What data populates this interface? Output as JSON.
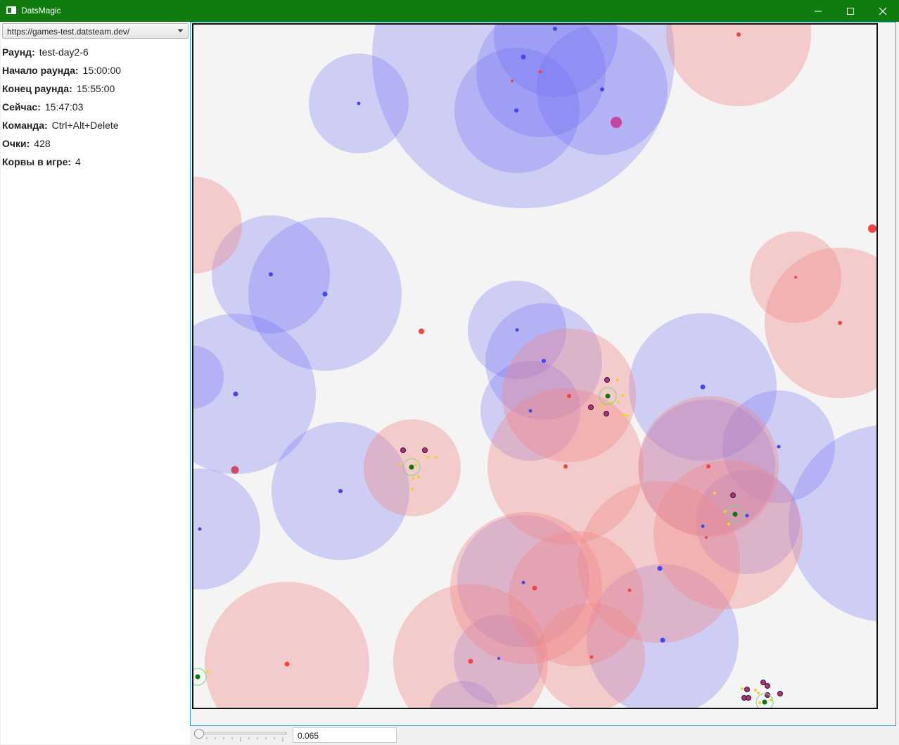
{
  "window": {
    "title": "DatsMagic",
    "titlebar_color": "#107c10"
  },
  "server": {
    "selected": "https://games-test.datsteam.dev/"
  },
  "info": {
    "round_label": "Раунд:",
    "round_value": "test-day2-6",
    "start_label": "Начало раунда:",
    "start_value": "15:00:00",
    "end_label": "Конец раунда:",
    "end_value": "15:55:00",
    "now_label": "Сейчас:",
    "now_value": "15:47:03",
    "team_label": "Команда:",
    "team_value": "Ctrl+Alt+Delete",
    "score_label": "Очки:",
    "score_value": "428",
    "ships_label": "Корвы в игре:",
    "ships_value": "4"
  },
  "zoom": {
    "value": "0.065",
    "slider_level": 0
  },
  "colors": {
    "blue_zone": "#6a6cf5",
    "red_zone": "#f28a8a",
    "blue_dot": "#4646f0",
    "red_dot": "#f04646",
    "own_ship": "#0a7a0a",
    "enemy_ship": "#b82a84",
    "bounty": "#f2d22a",
    "frame": "#29a8e0"
  },
  "icons": {
    "app": "window-app-icon",
    "minimize": "minimize-icon",
    "maximize": "maximize-icon",
    "close": "close-icon",
    "dropdown": "chevron-down-icon"
  }
}
